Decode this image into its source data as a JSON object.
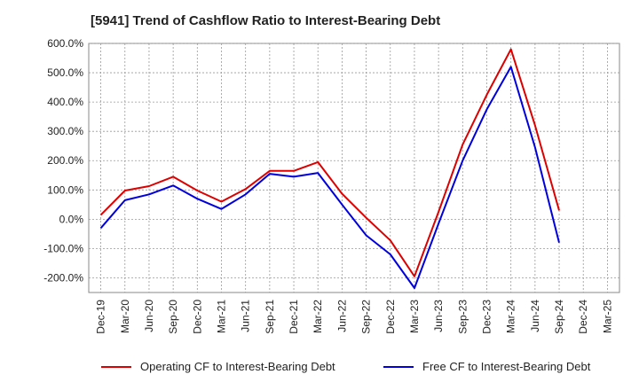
{
  "chart_data": {
    "type": "line",
    "title": "[5941]  Trend of Cashflow Ratio to Interest-Bearing Debt",
    "xlabel": "",
    "ylabel": "",
    "x": [
      "Dec-19",
      "Mar-20",
      "Jun-20",
      "Sep-20",
      "Dec-20",
      "Mar-21",
      "Jun-21",
      "Sep-21",
      "Dec-21",
      "Mar-22",
      "Jun-22",
      "Sep-22",
      "Dec-22",
      "Mar-23",
      "Jun-23",
      "Sep-23",
      "Dec-23",
      "Mar-24",
      "Jun-24",
      "Sep-24",
      "Dec-24",
      "Mar-25"
    ],
    "ylim": [
      -250,
      600
    ],
    "yticks": [
      -200,
      -100,
      0,
      100,
      200,
      300,
      400,
      500,
      600
    ],
    "ytick_labels": [
      "-200.0%",
      "-100.0%",
      "0.0%",
      "100.0%",
      "200.0%",
      "300.0%",
      "400.0%",
      "500.0%",
      "600.0%"
    ],
    "grid": true,
    "legend_position": "bottom",
    "series": [
      {
        "name": "Operating CF to Interest-Bearing Debt",
        "color": "#dd0000",
        "values": [
          15,
          98,
          113,
          145,
          98,
          60,
          103,
          165,
          165,
          195,
          87,
          5,
          -72,
          -195,
          25,
          255,
          425,
          580,
          320,
          30,
          null,
          null
        ]
      },
      {
        "name": "Free CF to Interest-Bearing Debt",
        "color": "#0000dd",
        "values": [
          -30,
          65,
          85,
          115,
          70,
          35,
          85,
          155,
          145,
          158,
          50,
          -55,
          -120,
          -235,
          -15,
          200,
          375,
          520,
          245,
          -80,
          null,
          null
        ]
      }
    ]
  }
}
